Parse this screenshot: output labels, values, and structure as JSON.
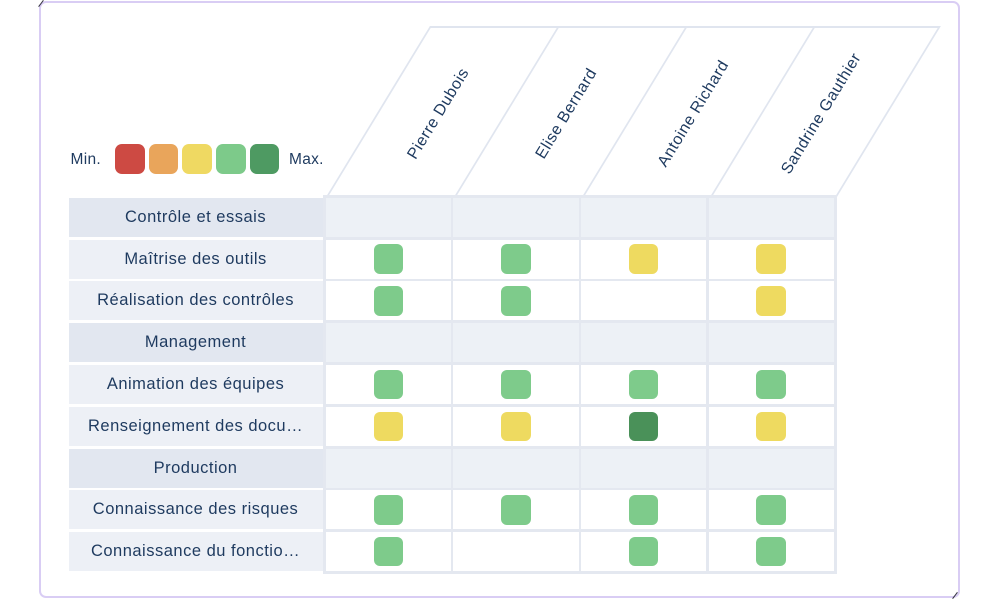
{
  "legend": {
    "min_label": "Min.",
    "max_label": "Max.",
    "levels": [
      {
        "name": "level-1",
        "color": "#cd4a43"
      },
      {
        "name": "level-2",
        "color": "#e9a55b"
      },
      {
        "name": "level-3",
        "color": "#efd962"
      },
      {
        "name": "level-4",
        "color": "#7dca8a"
      },
      {
        "name": "level-5",
        "color": "#4e9a62"
      }
    ]
  },
  "columns": [
    {
      "name": "Pierre Dubois"
    },
    {
      "name": "Elise Bernard"
    },
    {
      "name": "Antoine Richard"
    },
    {
      "name": "Sandrine Gauthier"
    }
  ],
  "cell_colors": {
    "green": "#7ecb8b",
    "yellow": "#eeda60",
    "dark-green": "#4a9159"
  },
  "rows": [
    {
      "label": "Contrôle et essais",
      "type": "category",
      "cells": [
        null,
        null,
        null,
        null
      ]
    },
    {
      "label": "Maîtrise des outils",
      "type": "skill",
      "cells": [
        "green",
        "green",
        "yellow",
        "yellow"
      ]
    },
    {
      "label": "Réalisation des contrôles",
      "type": "skill",
      "cells": [
        "green",
        "green",
        null,
        "yellow"
      ]
    },
    {
      "label": "Management",
      "type": "category",
      "cells": [
        null,
        null,
        null,
        null
      ]
    },
    {
      "label": "Animation des équipes",
      "type": "skill",
      "cells": [
        "green",
        "green",
        "green",
        "green"
      ]
    },
    {
      "label": "Renseignement des docu…",
      "type": "skill",
      "cells": [
        "yellow",
        "yellow",
        "dark-green",
        "yellow"
      ]
    },
    {
      "label": "Production",
      "type": "category",
      "cells": [
        null,
        null,
        null,
        null
      ]
    },
    {
      "label": "Connaissance des risques",
      "type": "skill",
      "cells": [
        "green",
        "green",
        "green",
        "green"
      ]
    },
    {
      "label": "Connaissance du fonctio…",
      "type": "skill",
      "cells": [
        "green",
        null,
        "green",
        "green"
      ]
    }
  ]
}
